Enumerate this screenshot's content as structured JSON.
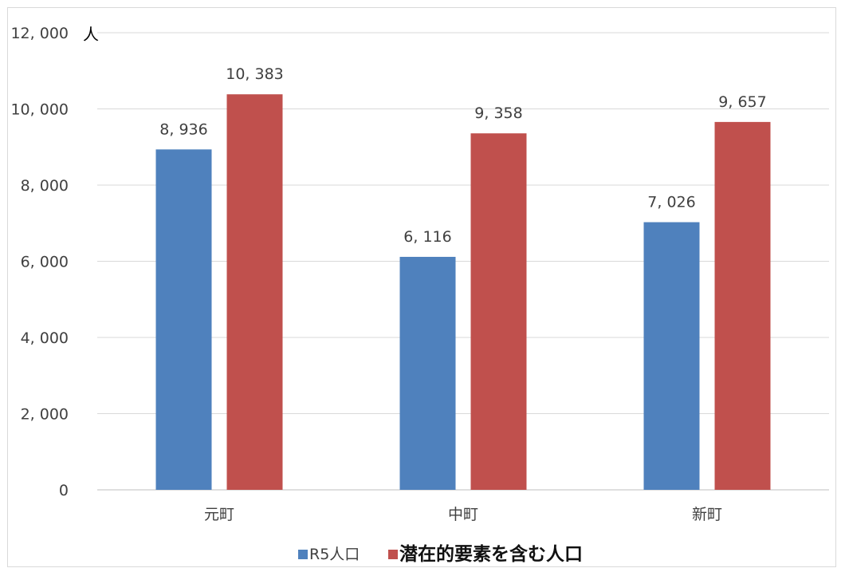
{
  "chart_data": {
    "type": "bar",
    "unit_label": "人",
    "categories": [
      "元町",
      "中町",
      "新町"
    ],
    "series": [
      {
        "name": "R5人口",
        "values": [
          8936,
          6116,
          7026
        ],
        "labels": [
          "8, 936",
          "6, 116",
          "7, 026"
        ],
        "color": "#4f81bd"
      },
      {
        "name": "潜在的要素を含む人口",
        "values": [
          10383,
          9358,
          9657
        ],
        "labels": [
          "10, 383",
          "9, 358",
          "9, 657"
        ],
        "color": "#c0504d"
      }
    ],
    "ylim": [
      0,
      12000
    ],
    "yticks": [
      0,
      2000,
      4000,
      6000,
      8000,
      10000,
      12000
    ],
    "ytick_labels": [
      "0",
      "2, 000",
      "4, 000",
      "6, 000",
      "8, 000",
      "10, 000",
      "12, 000"
    ],
    "grid": true,
    "legend_position": "bottom"
  }
}
